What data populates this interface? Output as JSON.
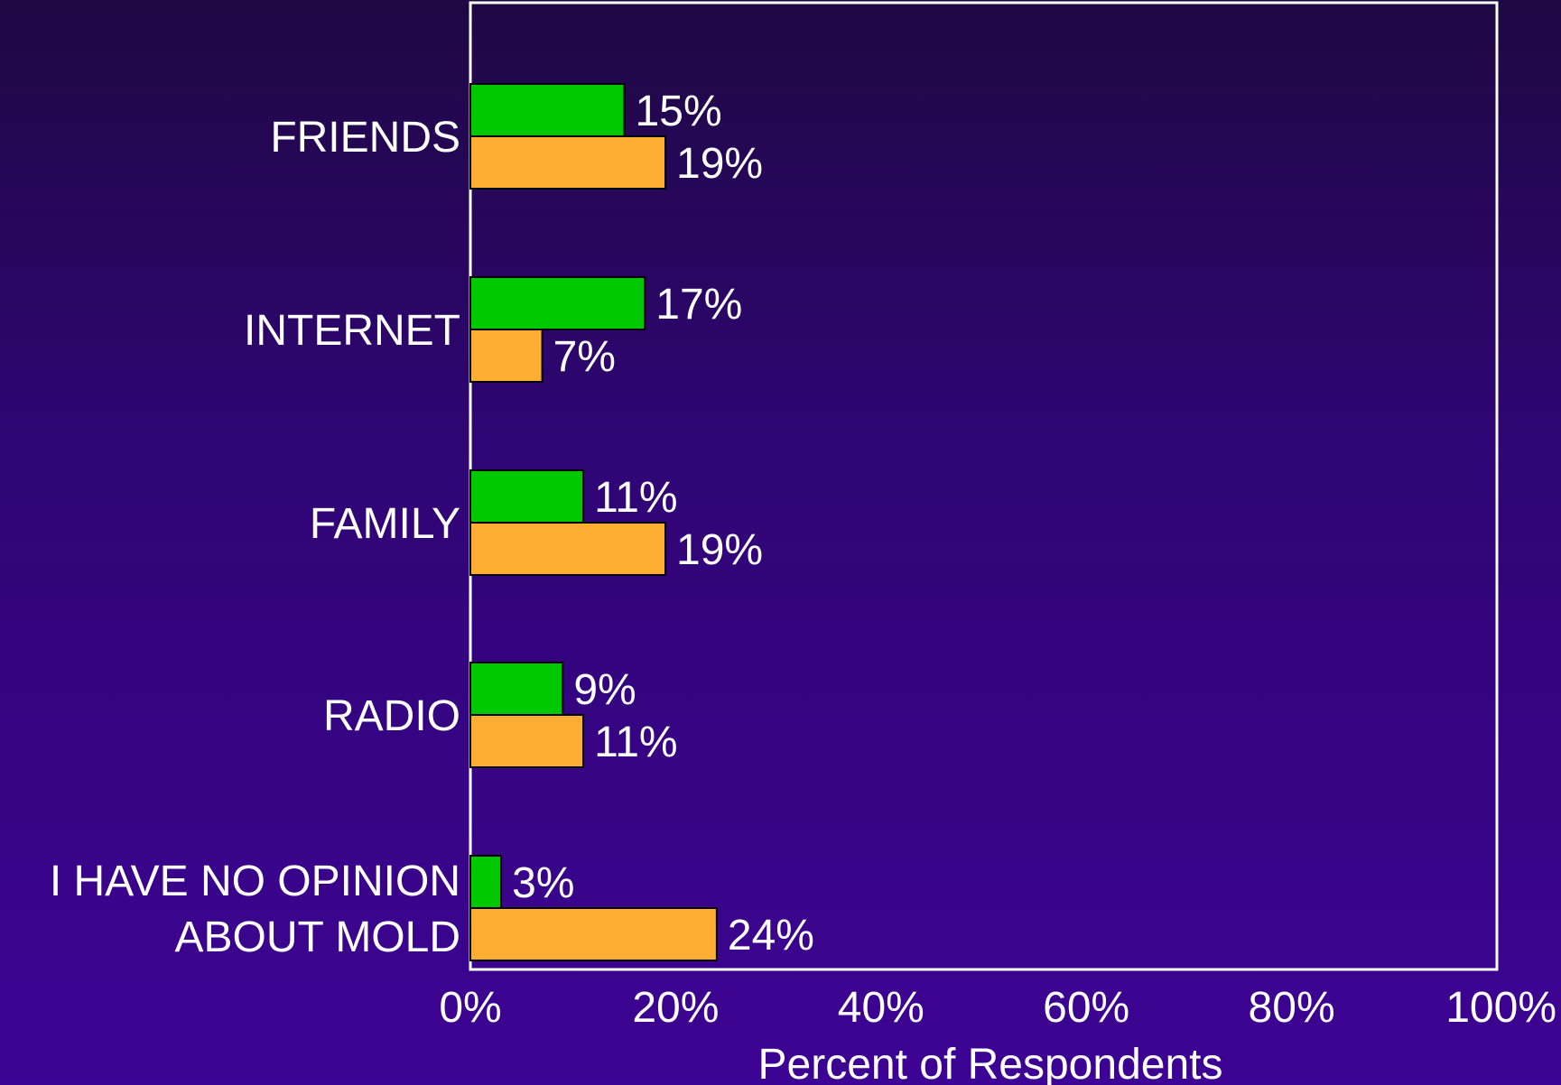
{
  "chart_data": {
    "type": "bar",
    "orientation": "horizontal",
    "categories": [
      [
        "FRIENDS"
      ],
      [
        "INTERNET"
      ],
      [
        "FAMILY"
      ],
      [
        "RADIO"
      ],
      [
        "I HAVE NO OPINION",
        "ABOUT MOLD"
      ]
    ],
    "series": [
      {
        "values": [
          15,
          17,
          11,
          9,
          3
        ],
        "color": "#00c800"
      },
      {
        "values": [
          19,
          7,
          19,
          11,
          24
        ],
        "color": "#ffad33"
      }
    ],
    "value_labels": [
      [
        "15%",
        "17%",
        "11%",
        "9%",
        "3%"
      ],
      [
        "19%",
        "7%",
        "19%",
        "11%",
        "24%"
      ]
    ],
    "xticks": [
      0,
      20,
      40,
      60,
      80,
      100
    ],
    "xtick_labels": [
      "0%",
      "20%",
      "40%",
      "60%",
      "80%",
      "100%"
    ],
    "xlim": [
      0,
      100
    ],
    "xlabel": "Percent of Respondents",
    "ylabel": "",
    "title": "",
    "grid": false,
    "legend": "none",
    "colors": {
      "frame": "#ffffff",
      "text": "#ffffff",
      "bar_outline": "#000000"
    }
  }
}
